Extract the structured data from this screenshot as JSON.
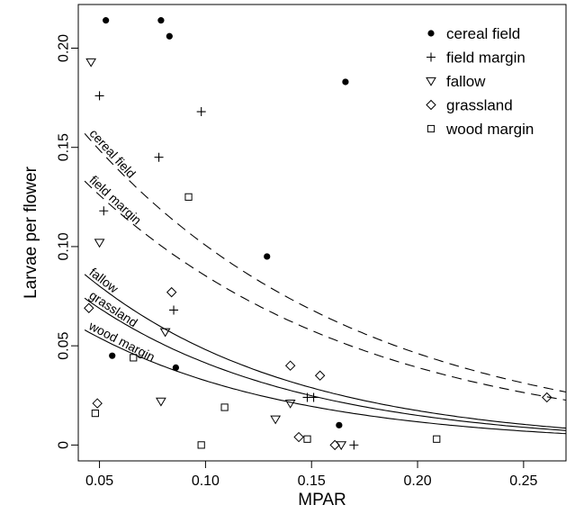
{
  "chart_data": {
    "type": "scatter",
    "title": "",
    "xlabel": "MPAR",
    "ylabel": "Larvae per flower",
    "xlim": [
      0.04,
      0.27
    ],
    "ylim": [
      -0.008,
      0.222
    ],
    "xticks": [
      0.05,
      0.1,
      0.15,
      0.2,
      0.25
    ],
    "xtick_labels": [
      "0.05",
      "0.10",
      "0.15",
      "0.20",
      "0.25"
    ],
    "yticks": [
      0,
      0.05,
      0.1,
      0.15,
      0.2
    ],
    "ytick_labels": [
      "0",
      "0.05",
      "0.10",
      "0.15",
      "0.20"
    ],
    "grid": false,
    "legend_position": "top-right",
    "series": [
      {
        "name": "cereal field",
        "marker": "filled-circle",
        "points": [
          [
            0.053,
            0.214
          ],
          [
            0.079,
            0.214
          ],
          [
            0.083,
            0.206
          ],
          [
            0.166,
            0.183
          ],
          [
            0.129,
            0.095
          ],
          [
            0.056,
            0.045
          ],
          [
            0.086,
            0.039
          ],
          [
            0.163,
            0.01
          ]
        ]
      },
      {
        "name": "field margin",
        "marker": "plus",
        "points": [
          [
            0.05,
            0.176
          ],
          [
            0.098,
            0.168
          ],
          [
            0.078,
            0.145
          ],
          [
            0.052,
            0.118
          ],
          [
            0.085,
            0.068
          ],
          [
            0.148,
            0.024
          ],
          [
            0.151,
            0.024
          ],
          [
            0.17,
            0.0
          ]
        ]
      },
      {
        "name": "fallow",
        "marker": "triangle-down",
        "points": [
          [
            0.046,
            0.193
          ],
          [
            0.05,
            0.102
          ],
          [
            0.081,
            0.057
          ],
          [
            0.079,
            0.022
          ],
          [
            0.133,
            0.013
          ],
          [
            0.14,
            0.021
          ],
          [
            0.164,
            0.0
          ]
        ]
      },
      {
        "name": "grassland",
        "marker": "diamond",
        "points": [
          [
            0.045,
            0.069
          ],
          [
            0.084,
            0.077
          ],
          [
            0.049,
            0.021
          ],
          [
            0.14,
            0.04
          ],
          [
            0.144,
            0.004
          ],
          [
            0.154,
            0.035
          ],
          [
            0.161,
            0.0
          ],
          [
            0.261,
            0.024
          ]
        ]
      },
      {
        "name": "wood margin",
        "marker": "square",
        "points": [
          [
            0.092,
            0.125
          ],
          [
            0.066,
            0.044
          ],
          [
            0.048,
            0.016
          ],
          [
            0.109,
            0.019
          ],
          [
            0.098,
            0.0
          ],
          [
            0.148,
            0.003
          ],
          [
            0.209,
            0.003
          ]
        ]
      }
    ],
    "curves": [
      {
        "label": "cereal field",
        "style": "dashed",
        "y0": 0.157,
        "k": 7.8
      },
      {
        "label": "field margin",
        "style": "dashed",
        "y0": 0.133,
        "k": 7.8
      },
      {
        "label": "fallow",
        "style": "solid",
        "y0": 0.086,
        "k": 10.2
      },
      {
        "label": "grassland",
        "style": "solid",
        "y0": 0.074,
        "k": 10.2
      },
      {
        "label": "wood margin",
        "style": "solid",
        "y0": 0.058,
        "k": 10.2
      }
    ]
  }
}
